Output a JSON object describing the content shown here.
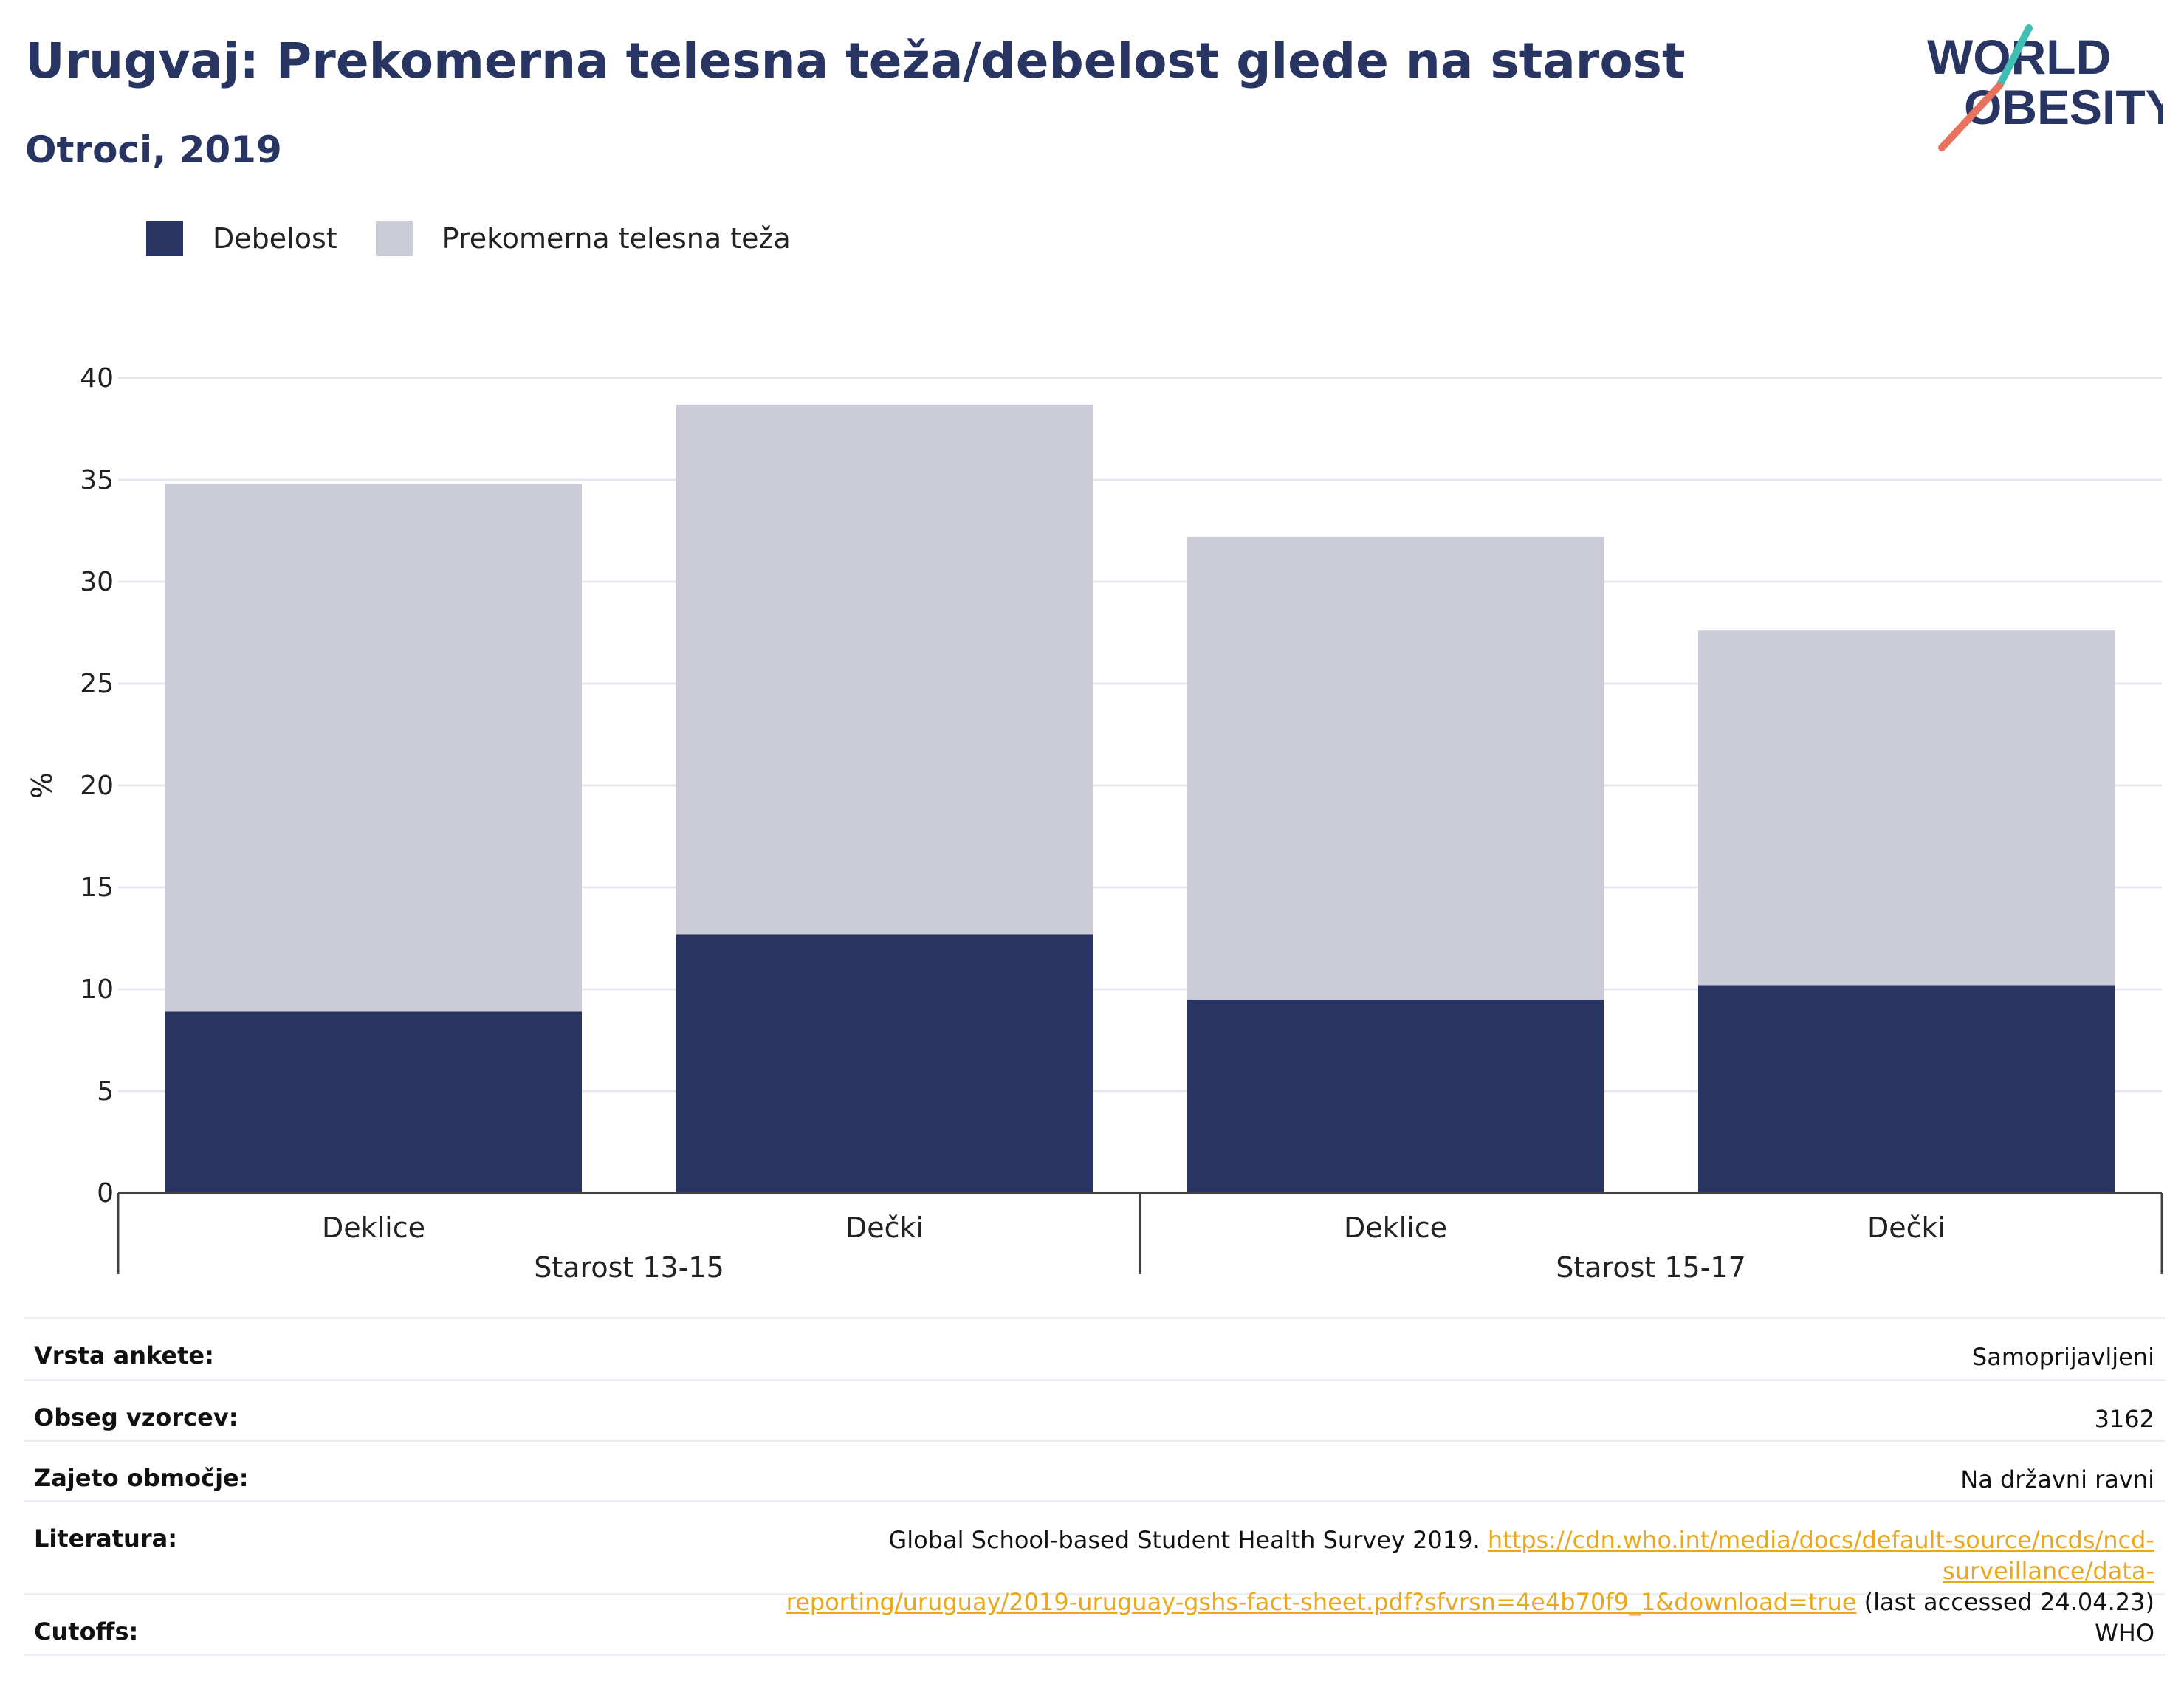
{
  "header": {
    "title": "Urugvaj: Prekomerna telesna teža/debelost glede na starost",
    "subtitle": "Otroci, 2019"
  },
  "logo": {
    "line1": "WORLD",
    "line2": "OBESITY"
  },
  "colors": {
    "title": "#283462",
    "obesity": "#283462",
    "overweight": "#cbccd8",
    "grid": "#e6e7ee",
    "axis": "#444444",
    "link": "#e9a71c",
    "logo_teal": "#3fbfb4",
    "logo_coral": "#e8725e"
  },
  "legend": {
    "items": [
      {
        "label": "Debelost",
        "color": "#283462"
      },
      {
        "label": "Prekomerna telesna teža",
        "color": "#cbccd8"
      }
    ]
  },
  "chart_data": {
    "type": "bar",
    "stacked": true,
    "ylabel": "%",
    "ylim": [
      0,
      40
    ],
    "yticks": [
      0,
      5,
      10,
      15,
      20,
      25,
      30,
      35,
      40
    ],
    "grid": true,
    "legend_position": "top-left",
    "groups": [
      {
        "label": "Starost 13-15",
        "categories": [
          "Deklice",
          "Dečki"
        ]
      },
      {
        "label": "Starost 15-17",
        "categories": [
          "Deklice",
          "Dečki"
        ]
      }
    ],
    "categories": [
      "Deklice",
      "Dečki",
      "Deklice",
      "Dečki"
    ],
    "series": [
      {
        "name": "Debelost",
        "values": [
          8.9,
          12.7,
          9.5,
          10.2
        ]
      },
      {
        "name": "Prekomerna telesna teža",
        "values": [
          25.9,
          26.0,
          22.7,
          17.4
        ]
      }
    ]
  },
  "info": {
    "rows": [
      {
        "key": "Vrsta ankete:",
        "value": "Samoprijavljeni"
      },
      {
        "key": "Obseg vzorcev:",
        "value": "3162"
      },
      {
        "key": "Zajeto območje:",
        "value": "Na državni ravni"
      }
    ],
    "literature": {
      "key": "Literatura:",
      "text_before": "Global School-based Student Health Survey 2019.",
      "link_line1": "https://cdn.who.int/media/docs/default-source/ncds/ncd-surveillance/data-",
      "link_line2": "reporting/uruguay/2019-uruguay-gshs-fact-sheet.pdf?sfvrsn=4e4b70f9_1&download=true",
      "text_after": "(last accessed 24.04.23)"
    },
    "cutoffs": {
      "key": "Cutoffs:",
      "value": "WHO"
    }
  }
}
